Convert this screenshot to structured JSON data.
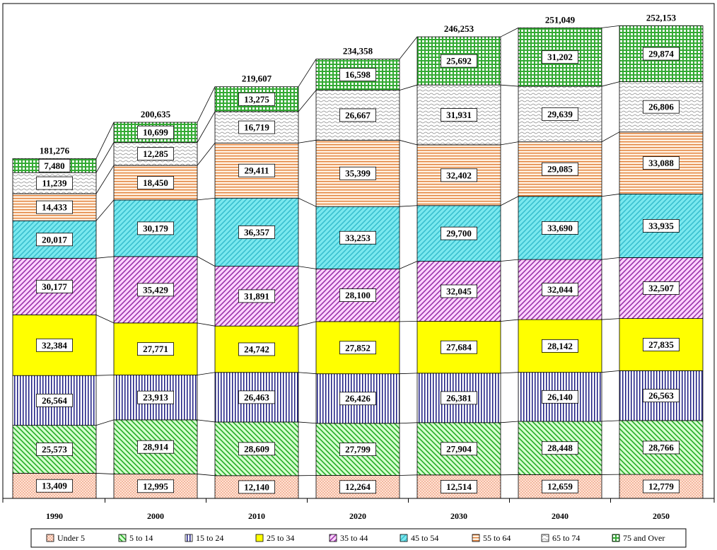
{
  "chart_data": {
    "type": "bar",
    "stacked": true,
    "title": "",
    "xlabel": "",
    "ylabel": "",
    "ylim": [
      0,
      264000
    ],
    "grid": false,
    "legend_position": "bottom",
    "categories": [
      "1990",
      "2000",
      "2010",
      "2020",
      "2030",
      "2040",
      "2050"
    ],
    "totals": [
      "181,276",
      "200,635",
      "219,607",
      "234,358",
      "246,253",
      "251,049",
      "252,153"
    ],
    "series": [
      {
        "name": "Under 5",
        "color": "#ffe0cc",
        "pattern": "dots",
        "values": [
          13409,
          12995,
          12140,
          12264,
          12514,
          12659,
          12779
        ],
        "labels": [
          "13,409",
          "12,995",
          "12,140",
          "12,264",
          "12,514",
          "12,659",
          "12,779"
        ]
      },
      {
        "name": "5 to 14",
        "color": "#ccffcc",
        "pattern": "diag-green",
        "values": [
          25573,
          28914,
          28609,
          27799,
          27904,
          28448,
          28766
        ],
        "labels": [
          "25,573",
          "28,914",
          "28,609",
          "27,799",
          "27,904",
          "28,448",
          "28,766"
        ]
      },
      {
        "name": "15 to 24",
        "color": "#ffffff",
        "pattern": "vlines-navy",
        "values": [
          26564,
          23913,
          26463,
          26426,
          26381,
          26140,
          26563
        ],
        "labels": [
          "26,564",
          "23,913",
          "26,463",
          "26,426",
          "26,381",
          "26,140",
          "26,563"
        ]
      },
      {
        "name": "25 to 34",
        "color": "#ffff00",
        "pattern": "solid",
        "values": [
          32384,
          27771,
          24742,
          27852,
          27684,
          28142,
          27835
        ],
        "labels": [
          "32,384",
          "27,771",
          "24,742",
          "27,852",
          "27,684",
          "28,142",
          "27,835"
        ]
      },
      {
        "name": "35 to 44",
        "color": "#ffccff",
        "pattern": "diag-purple",
        "values": [
          30177,
          35429,
          31891,
          28100,
          32045,
          32044,
          32507
        ],
        "labels": [
          "30,177",
          "35,429",
          "31,891",
          "28,100",
          "32,045",
          "32,044",
          "32,507"
        ]
      },
      {
        "name": "45 to 54",
        "color": "#66e6ee",
        "pattern": "diag-cyan",
        "values": [
          20017,
          30179,
          36357,
          33253,
          29700,
          33690,
          33935
        ],
        "labels": [
          "20,017",
          "30,179",
          "36,357",
          "33,253",
          "29,700",
          "33,690",
          "33,935"
        ]
      },
      {
        "name": "55 to 64",
        "color": "#ffe6cc",
        "pattern": "hlines-orange",
        "values": [
          14433,
          18450,
          29411,
          35399,
          32402,
          29085,
          33088
        ],
        "labels": [
          "14,433",
          "18,450",
          "29,411",
          "35,399",
          "32,402",
          "29,085",
          "33,088"
        ]
      },
      {
        "name": "65 to 74",
        "color": "#ffffff",
        "pattern": "waves",
        "values": [
          11239,
          12285,
          16719,
          26667,
          31931,
          29639,
          26806
        ],
        "labels": [
          "11,239",
          "12,285",
          "16,719",
          "26,667",
          "31,931",
          "29,639",
          "26,806"
        ]
      },
      {
        "name": "75 and Over",
        "color": "#99dd99",
        "pattern": "grid-green",
        "values": [
          7480,
          10699,
          13275,
          16598,
          25692,
          31202,
          29874
        ],
        "labels": [
          "7,480",
          "10,699",
          "13,275",
          "16,598",
          "25,692",
          "31,202",
          "29,874"
        ]
      }
    ]
  }
}
